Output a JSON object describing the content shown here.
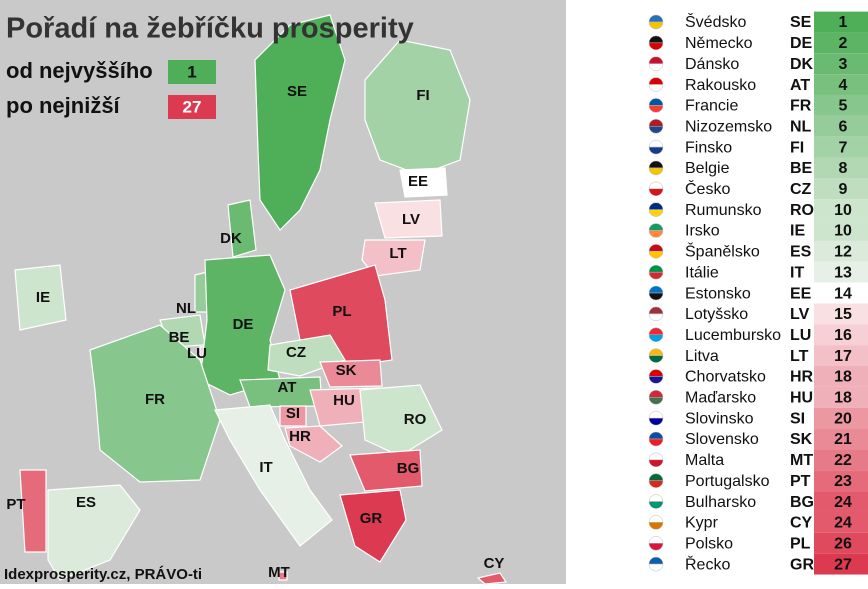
{
  "header": {
    "title": "Pořadí na žebříčku prosperity",
    "legend": [
      {
        "label": "od nejvyššího",
        "rank": "1",
        "color": "#4fae58"
      },
      {
        "label": "po nejnižší",
        "rank": "27",
        "color": "#dc3a50"
      }
    ]
  },
  "ranking": {
    "rows": [
      {
        "country": "Švédsko",
        "code": "SE",
        "rank": "1",
        "color": "#4fae58"
      },
      {
        "country": "Německo",
        "code": "DE",
        "rank": "2",
        "color": "#5db465"
      },
      {
        "country": "Dánsko",
        "code": "DK",
        "rank": "3",
        "color": "#6bba72"
      },
      {
        "country": "Rakousko",
        "code": "AT",
        "rank": "4",
        "color": "#79c07f"
      },
      {
        "country": "Francie",
        "code": "FR",
        "rank": "5",
        "color": "#87c68c"
      },
      {
        "country": "Nizozemsko",
        "code": "NL",
        "rank": "6",
        "color": "#95cc99"
      },
      {
        "country": "Finsko",
        "code": "FI",
        "rank": "7",
        "color": "#a3d2a6"
      },
      {
        "country": "Belgie",
        "code": "BE",
        "rank": "8",
        "color": "#b1d8b3"
      },
      {
        "country": "Česko",
        "code": "CZ",
        "rank": "9",
        "color": "#bfdec0"
      },
      {
        "country": "Rumunsko",
        "code": "RO",
        "rank": "10",
        "color": "#cde4cd"
      },
      {
        "country": "Irsko",
        "code": "IE",
        "rank": "10",
        "color": "#cde4cd"
      },
      {
        "country": "Španělsko",
        "code": "ES",
        "rank": "12",
        "color": "#dbeada"
      },
      {
        "country": "Itálie",
        "code": "IT",
        "rank": "13",
        "color": "#e6f0e6"
      },
      {
        "country": "Estonsko",
        "code": "EE",
        "rank": "14",
        "color": "#ffffff"
      },
      {
        "country": "Lotyšsko",
        "code": "LV",
        "rank": "15",
        "color": "#f9e0e3"
      },
      {
        "country": "Lucembursko",
        "code": "LU",
        "rank": "16",
        "color": "#f6d0d5"
      },
      {
        "country": "Litva",
        "code": "LT",
        "rank": "17",
        "color": "#f3c0c7"
      },
      {
        "country": "Chorvatsko",
        "code": "HR",
        "rank": "18",
        "color": "#f0b0b9"
      },
      {
        "country": "Maďarsko",
        "code": "HU",
        "rank": "18",
        "color": "#f0b0b9"
      },
      {
        "country": "Slovinsko",
        "code": "SI",
        "rank": "20",
        "color": "#ec98a3"
      },
      {
        "country": "Slovensko",
        "code": "SK",
        "rank": "21",
        "color": "#ea8a96"
      },
      {
        "country": "Malta",
        "code": "MT",
        "rank": "22",
        "color": "#e77a88"
      },
      {
        "country": "Portugalsko",
        "code": "PT",
        "rank": "23",
        "color": "#e56a7a"
      },
      {
        "country": "Bulharsko",
        "code": "BG",
        "rank": "24",
        "color": "#e25a6c"
      },
      {
        "country": "Kypr",
        "code": "CY",
        "rank": "24",
        "color": "#e25a6c"
      },
      {
        "country": "Polsko",
        "code": "PL",
        "rank": "26",
        "color": "#df4a5e"
      },
      {
        "country": "Řecko",
        "code": "GR",
        "rank": "27",
        "color": "#dc3a50"
      }
    ]
  },
  "map": {
    "labels": [
      "SE",
      "FI",
      "EE",
      "LV",
      "LT",
      "DK",
      "IE",
      "NL",
      "BE",
      "LU",
      "DE",
      "PL",
      "CZ",
      "SK",
      "AT",
      "HU",
      "SI",
      "HR",
      "FR",
      "RO",
      "IT",
      "BG",
      "PT",
      "ES",
      "GR",
      "MT",
      "CY"
    ]
  },
  "source": "Idexprosperity.cz, PRÁVO-ti"
}
